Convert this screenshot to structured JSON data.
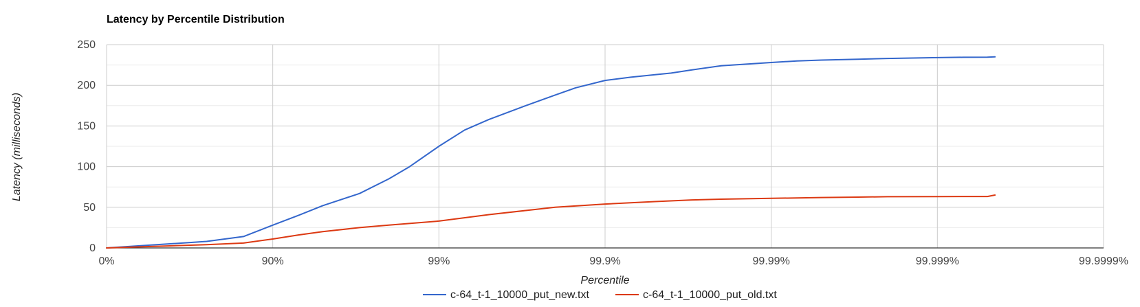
{
  "chart_data": {
    "type": "line",
    "title": "Latency by Percentile Distribution",
    "xlabel": "Percentile",
    "ylabel": "Latency (milliseconds)",
    "x_scale": "log-nines",
    "x_ticks": [
      "0%",
      "90%",
      "99%",
      "99.9%",
      "99.99%",
      "99.999%",
      "99.9999%"
    ],
    "x_range": [
      0,
      99.9999
    ],
    "y_ticks": [
      "0",
      "50",
      "100",
      "150",
      "200",
      "250"
    ],
    "ylim": [
      0,
      250
    ],
    "grid": true,
    "legend_position": "bottom",
    "series": [
      {
        "name": "c-64_t-1_10000_put_new.txt",
        "color": "#3366cc",
        "points": [
          [
            0,
            0
          ],
          [
            50,
            4
          ],
          [
            75,
            8
          ],
          [
            85,
            14
          ],
          [
            90,
            28
          ],
          [
            93,
            40
          ],
          [
            95,
            52
          ],
          [
            97,
            67
          ],
          [
            98,
            85
          ],
          [
            98.5,
            100
          ],
          [
            99,
            125
          ],
          [
            99.3,
            145
          ],
          [
            99.5,
            158
          ],
          [
            99.7,
            175
          ],
          [
            99.8,
            188
          ],
          [
            99.85,
            197
          ],
          [
            99.9,
            206
          ],
          [
            99.93,
            210
          ],
          [
            99.95,
            213
          ],
          [
            99.96,
            215
          ],
          [
            99.97,
            219
          ],
          [
            99.98,
            224
          ],
          [
            99.99,
            228
          ],
          [
            99.993,
            230
          ],
          [
            99.995,
            231
          ],
          [
            99.997,
            232
          ],
          [
            99.998,
            233
          ],
          [
            99.999,
            234
          ],
          [
            99.9993,
            234.5
          ],
          [
            99.9995,
            234.6
          ],
          [
            99.99955,
            235
          ]
        ]
      },
      {
        "name": "c-64_t-1_10000_put_old.txt",
        "color": "#dc3912",
        "points": [
          [
            0,
            0
          ],
          [
            50,
            2
          ],
          [
            75,
            4
          ],
          [
            85,
            6
          ],
          [
            90,
            11
          ],
          [
            93,
            16
          ],
          [
            95,
            20
          ],
          [
            97,
            25
          ],
          [
            98,
            28
          ],
          [
            99,
            33
          ],
          [
            99.5,
            41
          ],
          [
            99.7,
            46
          ],
          [
            99.8,
            50
          ],
          [
            99.9,
            54
          ],
          [
            99.95,
            57
          ],
          [
            99.97,
            59
          ],
          [
            99.98,
            60
          ],
          [
            99.99,
            61
          ],
          [
            99.995,
            62
          ],
          [
            99.997,
            62.5
          ],
          [
            99.998,
            63
          ],
          [
            99.999,
            63.2
          ],
          [
            99.9993,
            63.3
          ],
          [
            99.9995,
            63.3
          ],
          [
            99.99955,
            65
          ]
        ]
      }
    ]
  }
}
